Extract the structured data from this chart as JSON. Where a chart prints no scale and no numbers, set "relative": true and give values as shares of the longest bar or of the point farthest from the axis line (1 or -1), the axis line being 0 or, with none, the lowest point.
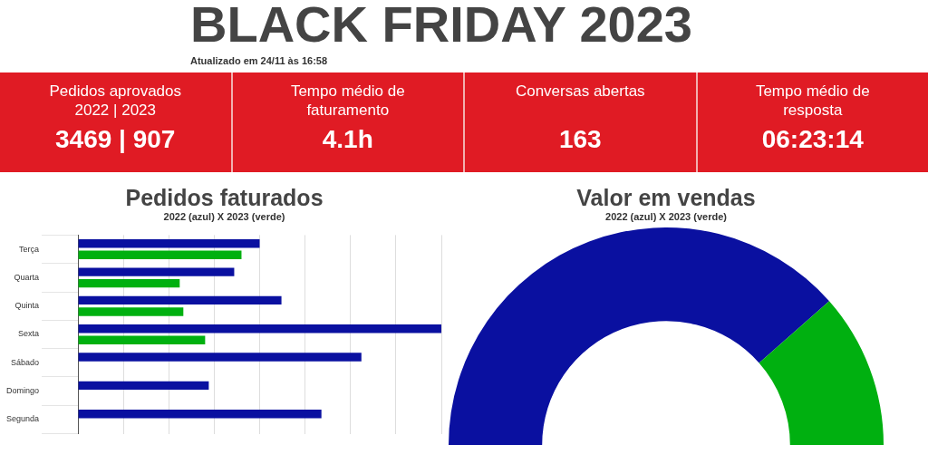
{
  "chart_data": [
    {
      "type": "other",
      "title": "BLACK FRIDAY 2023",
      "subtitle": "Atualizado em 24/11 às 16:58",
      "annotations": [
        "Pedidos aprovados 2022 | 2023",
        "3469 | 907",
        "Tempo médio de faturamento",
        "4.1h",
        "Conversas abertas",
        "163",
        "Tempo médio de resposta",
        "06:23:14"
      ]
    },
    {
      "type": "bar",
      "orientation": "horizontal",
      "relative": true,
      "title": "Pedidos faturados",
      "subtitle": "2022 (azul) X 2023 (verde)",
      "categories": [
        "Terça",
        "Quarta",
        "Quinta",
        "Sexta",
        "Sábado",
        "Domingo",
        "Segunda"
      ],
      "series": [
        {
          "color": "#0a10a0",
          "values": [
            0.5,
            0.43,
            0.56,
            1.0,
            0.78,
            0.36,
            0.67
          ]
        },
        {
          "color": "#00b010",
          "values": [
            0.45,
            0.28,
            0.29,
            0.35,
            null,
            null,
            null
          ]
        }
      ],
      "grid": true,
      "tick_labels": "y"
    },
    {
      "type": "donut",
      "title": "Valor em vendas",
      "subtitle": "2022 (azul) X 2023 (verde)",
      "categories": [
        null,
        null
      ],
      "values": [
        77,
        23
      ],
      "colors": [
        "#0a10a0",
        "#00b010"
      ]
    }
  ]
}
